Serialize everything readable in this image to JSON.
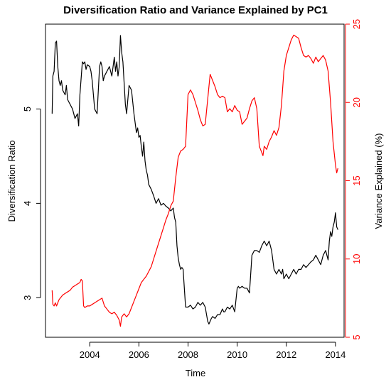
{
  "chart_data": {
    "type": "line",
    "title": "Diversification Ratio and Variance Explained by PC1",
    "xlabel": "Time",
    "ylabel_left": "Diversification Ratio",
    "ylabel_right": "Variance Explained (%)",
    "xlim": [
      2002.2,
      2014.35
    ],
    "ylim_left": [
      2.58,
      5.9
    ],
    "ylim_right": [
      5,
      25
    ],
    "x_ticks": [
      2004,
      2006,
      2008,
      2010,
      2012,
      2014
    ],
    "x_tick_labels": [
      "2004",
      "2006",
      "2008",
      "2010",
      "2012",
      "2014"
    ],
    "y_left_ticks": [
      3,
      4,
      5
    ],
    "y_left_tick_labels": [
      "3",
      "4",
      "5"
    ],
    "y_right_ticks": [
      5,
      10,
      15,
      20,
      25
    ],
    "y_right_tick_labels": [
      "5",
      "10",
      "15",
      "20",
      "25"
    ],
    "grid": false,
    "legend": "none",
    "series": [
      {
        "axis": "left",
        "color": "#000000",
        "x": [
          2002.47,
          2002.5,
          2002.55,
          2002.6,
          2002.65,
          2002.7,
          2002.75,
          2002.8,
          2002.85,
          2002.9,
          2003.0,
          2003.05,
          2003.1,
          2003.2,
          2003.3,
          2003.4,
          2003.5,
          2003.55,
          2003.6,
          2003.7,
          2003.75,
          2003.8,
          2003.85,
          2003.9,
          2004.0,
          2004.05,
          2004.1,
          2004.2,
          2004.3,
          2004.4,
          2004.45,
          2004.5,
          2004.55,
          2004.6,
          2004.7,
          2004.8,
          2004.9,
          2005.0,
          2005.05,
          2005.1,
          2005.15,
          2005.2,
          2005.25,
          2005.3,
          2005.35,
          2005.45,
          2005.5,
          2005.55,
          2005.6,
          2005.7,
          2005.8,
          2005.9,
          2005.95,
          2006.0,
          2006.05,
          2006.1,
          2006.15,
          2006.2,
          2006.25,
          2006.3,
          2006.35,
          2006.4,
          2006.5,
          2006.6,
          2006.7,
          2006.8,
          2006.9,
          2007.0,
          2007.1,
          2007.2,
          2007.3,
          2007.4,
          2007.45,
          2007.5,
          2007.55,
          2007.6,
          2007.65,
          2007.7,
          2007.75,
          2007.8,
          2007.85,
          2007.9,
          2008.0,
          2008.1,
          2008.2,
          2008.3,
          2008.4,
          2008.5,
          2008.6,
          2008.7,
          2008.8,
          2008.85,
          2008.9,
          2008.95,
          2009.0,
          2009.1,
          2009.2,
          2009.3,
          2009.4,
          2009.45,
          2009.5,
          2009.6,
          2009.7,
          2009.8,
          2009.9,
          2010.0,
          2010.05,
          2010.1,
          2010.2,
          2010.3,
          2010.4,
          2010.5,
          2010.6,
          2010.7,
          2010.8,
          2010.9,
          2011.0,
          2011.1,
          2011.2,
          2011.3,
          2011.4,
          2011.5,
          2011.6,
          2011.7,
          2011.8,
          2011.85,
          2011.9,
          2012.0,
          2012.1,
          2012.2,
          2012.3,
          2012.4,
          2012.5,
          2012.6,
          2012.7,
          2012.8,
          2012.9,
          2013.0,
          2013.1,
          2013.2,
          2013.3,
          2013.4,
          2013.5,
          2013.6,
          2013.7,
          2013.75,
          2013.8,
          2013.85,
          2013.9,
          2013.95,
          2014.0,
          2014.05,
          2014.1
        ],
        "y": [
          4.95,
          5.35,
          5.4,
          5.7,
          5.72,
          5.45,
          5.3,
          5.25,
          5.3,
          5.2,
          5.15,
          5.25,
          5.1,
          5.05,
          5.0,
          4.9,
          4.95,
          4.82,
          5.15,
          5.5,
          5.48,
          5.5,
          5.42,
          5.47,
          5.45,
          5.4,
          5.3,
          5.0,
          4.95,
          5.45,
          5.5,
          5.45,
          5.3,
          5.35,
          5.4,
          5.45,
          5.35,
          5.55,
          5.4,
          5.5,
          5.35,
          5.45,
          5.78,
          5.6,
          5.5,
          5.05,
          4.95,
          5.1,
          5.25,
          5.2,
          4.95,
          4.75,
          4.8,
          4.7,
          4.72,
          4.6,
          4.5,
          4.65,
          4.45,
          4.35,
          4.3,
          4.2,
          4.15,
          4.08,
          4.0,
          4.05,
          3.98,
          4.0,
          3.97,
          3.95,
          3.92,
          3.95,
          3.85,
          3.8,
          3.55,
          3.42,
          3.35,
          3.3,
          3.32,
          3.3,
          3.1,
          2.9,
          2.9,
          2.92,
          2.88,
          2.9,
          2.95,
          2.92,
          2.95,
          2.9,
          2.75,
          2.72,
          2.75,
          2.78,
          2.8,
          2.78,
          2.82,
          2.82,
          2.88,
          2.85,
          2.85,
          2.9,
          2.88,
          2.92,
          2.85,
          3.1,
          3.12,
          3.1,
          3.12,
          3.1,
          3.1,
          3.05,
          3.45,
          3.5,
          3.5,
          3.48,
          3.55,
          3.6,
          3.55,
          3.6,
          3.5,
          3.3,
          3.25,
          3.3,
          3.25,
          3.3,
          3.2,
          3.25,
          3.2,
          3.25,
          3.3,
          3.25,
          3.3,
          3.3,
          3.35,
          3.32,
          3.35,
          3.38,
          3.4,
          3.45,
          3.4,
          3.35,
          3.45,
          3.5,
          3.4,
          3.6,
          3.7,
          3.65,
          3.75,
          3.8,
          3.9,
          3.75,
          3.72
        ]
      },
      {
        "axis": "right",
        "color": "#ff0000",
        "x": [
          2002.47,
          2002.5,
          2002.55,
          2002.6,
          2002.65,
          2002.7,
          2002.75,
          2002.8,
          2002.9,
          2003.0,
          2003.1,
          2003.2,
          2003.3,
          2003.4,
          2003.5,
          2003.6,
          2003.65,
          2003.7,
          2003.75,
          2003.8,
          2003.9,
          2004.0,
          2004.1,
          2004.2,
          2004.3,
          2004.4,
          2004.5,
          2004.6,
          2004.7,
          2004.8,
          2004.9,
          2005.0,
          2005.1,
          2005.2,
          2005.25,
          2005.3,
          2005.4,
          2005.5,
          2005.6,
          2005.7,
          2005.8,
          2005.9,
          2006.0,
          2006.1,
          2006.2,
          2006.3,
          2006.4,
          2006.5,
          2006.6,
          2006.7,
          2006.8,
          2006.9,
          2007.0,
          2007.1,
          2007.2,
          2007.3,
          2007.4,
          2007.5,
          2007.6,
          2007.7,
          2007.8,
          2007.9,
          2008.0,
          2008.1,
          2008.2,
          2008.3,
          2008.4,
          2008.5,
          2008.6,
          2008.7,
          2008.8,
          2008.9,
          2009.0,
          2009.1,
          2009.2,
          2009.3,
          2009.4,
          2009.5,
          2009.6,
          2009.7,
          2009.8,
          2009.9,
          2010.0,
          2010.1,
          2010.2,
          2010.3,
          2010.4,
          2010.5,
          2010.6,
          2010.7,
          2010.8,
          2010.9,
          2011.0,
          2011.05,
          2011.1,
          2011.2,
          2011.3,
          2011.4,
          2011.5,
          2011.6,
          2011.7,
          2011.8,
          2011.9,
          2012.0,
          2012.1,
          2012.2,
          2012.3,
          2012.4,
          2012.5,
          2012.6,
          2012.7,
          2012.8,
          2012.9,
          2013.0,
          2013.1,
          2013.2,
          2013.3,
          2013.4,
          2013.5,
          2013.6,
          2013.7,
          2013.8,
          2013.9,
          2014.0,
          2014.05,
          2014.1
        ],
        "y": [
          8.0,
          7.1,
          7.0,
          7.2,
          7.0,
          7.2,
          7.4,
          7.5,
          7.7,
          7.8,
          7.9,
          8.0,
          8.2,
          8.3,
          8.4,
          8.5,
          8.7,
          8.6,
          7.0,
          6.9,
          7.0,
          7.0,
          7.1,
          7.2,
          7.3,
          7.4,
          7.5,
          7.0,
          6.8,
          6.6,
          6.5,
          6.6,
          6.4,
          6.1,
          5.7,
          6.3,
          6.5,
          6.3,
          6.5,
          6.9,
          7.3,
          7.7,
          8.1,
          8.5,
          8.7,
          8.9,
          9.2,
          9.5,
          10.0,
          10.5,
          11.0,
          11.5,
          12.0,
          12.5,
          12.9,
          13.4,
          13.7,
          15.2,
          16.5,
          16.9,
          17.0,
          17.2,
          20.5,
          20.8,
          20.5,
          20.0,
          19.5,
          18.9,
          18.5,
          18.6,
          20.2,
          21.8,
          21.4,
          21.0,
          20.5,
          20.3,
          20.4,
          20.3,
          19.4,
          19.6,
          19.4,
          19.8,
          19.5,
          19.4,
          18.6,
          18.8,
          19.0,
          19.6,
          20.1,
          20.3,
          19.6,
          17.2,
          16.8,
          16.6,
          17.2,
          17.0,
          17.5,
          17.8,
          18.2,
          17.9,
          18.4,
          19.8,
          22.0,
          23.0,
          23.5,
          24.0,
          24.3,
          24.2,
          24.1,
          23.5,
          23.0,
          22.9,
          23.0,
          22.8,
          22.5,
          22.9,
          22.6,
          22.8,
          23.0,
          22.7,
          22.0,
          20.0,
          17.5,
          16.0,
          15.5,
          15.8
        ]
      }
    ]
  }
}
